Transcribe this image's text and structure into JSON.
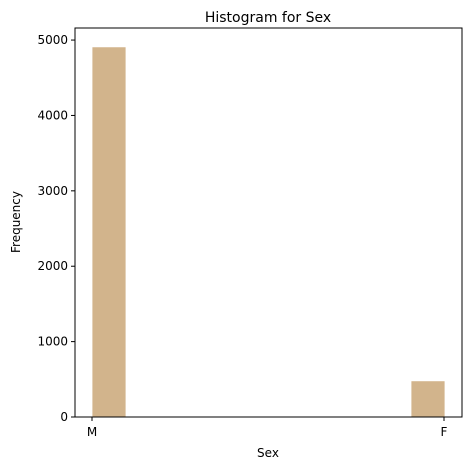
{
  "chart_data": {
    "type": "bar",
    "title": "Histogram for Sex",
    "xlabel": "Sex",
    "ylabel": "Frequency",
    "categories": [
      "M",
      "F"
    ],
    "values": [
      4910,
      480
    ],
    "ylim": [
      0,
      5160
    ],
    "yticks": [
      0,
      1000,
      2000,
      3000,
      4000,
      5000
    ],
    "bar_color": "#d2b48c",
    "grid": false
  }
}
